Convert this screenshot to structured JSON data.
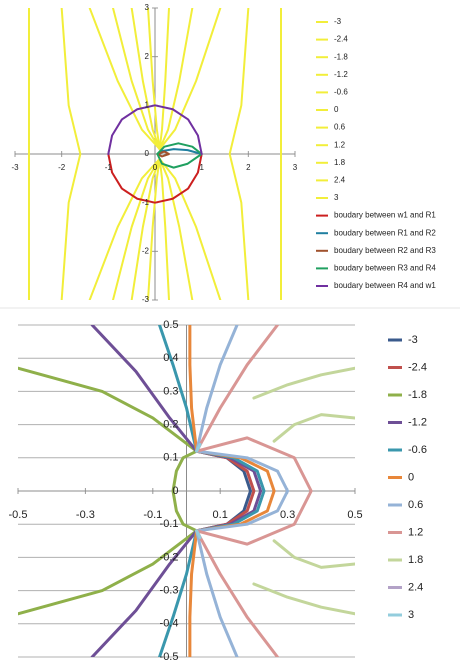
{
  "chart_data": [
    {
      "type": "line",
      "legend": "right",
      "grid": false,
      "xlim": [
        -3,
        3
      ],
      "ylim": [
        -3,
        3
      ],
      "xticks": [
        -3,
        -2,
        -1,
        0,
        1,
        2,
        3
      ],
      "yticks": [
        -3,
        -2,
        -1,
        0,
        1,
        2,
        3
      ],
      "series": [
        {
          "name": "-3",
          "color": "#f2ee3a",
          "x": [
            -2.7,
            -2.7
          ],
          "values": [
            3,
            -3
          ]
        },
        {
          "name": "-2.4",
          "color": "#f2ee3a",
          "x": [
            -2.0,
            -1.85,
            -1.6,
            -1.85,
            -2.0
          ],
          "values": [
            3,
            1,
            0,
            -1,
            -3
          ]
        },
        {
          "name": "-1.8",
          "color": "#f2ee3a",
          "x": [
            0.1,
            -0.28,
            -0.8,
            -1.4,
            null,
            0.1,
            -0.28,
            -0.8,
            -1.4
          ],
          "values": [
            0.1,
            0.5,
            1.5,
            3,
            null,
            -0.1,
            -0.5,
            -1.5,
            -3
          ]
        },
        {
          "name": "-1.2",
          "color": "#f2ee3a",
          "x": [
            0.1,
            -0.15,
            -0.5,
            -0.9,
            null,
            0.1,
            -0.15,
            -0.5,
            -0.9
          ],
          "values": [
            0.1,
            0.5,
            1.5,
            3,
            null,
            -0.1,
            -0.5,
            -1.5,
            -3
          ]
        },
        {
          "name": "-0.6",
          "color": "#f2ee3a",
          "x": [
            0.1,
            -0.05,
            -0.26,
            -0.5,
            null,
            0.1,
            -0.05,
            -0.26,
            -0.5
          ],
          "values": [
            0.1,
            0.5,
            1.5,
            3,
            null,
            -0.1,
            -0.5,
            -1.5,
            -3
          ]
        },
        {
          "name": "0",
          "color": "#f2ee3a",
          "x": [
            0.1,
            0.04,
            -0.05,
            -0.15,
            null,
            0.1,
            0.04,
            -0.05,
            -0.15
          ],
          "values": [
            0.1,
            0.5,
            1.5,
            3,
            null,
            -0.1,
            -0.5,
            -1.5,
            -3
          ]
        },
        {
          "name": "0.6",
          "color": "#f2ee3a",
          "x": [
            0.1,
            0.15,
            0.22,
            0.3,
            null,
            0.1,
            0.15,
            0.22,
            0.3
          ],
          "values": [
            0.1,
            0.5,
            1.5,
            3,
            null,
            -0.1,
            -0.5,
            -1.5,
            -3
          ]
        },
        {
          "name": "1.2",
          "color": "#f2ee3a",
          "x": [
            0.1,
            0.28,
            0.52,
            0.8,
            null,
            0.1,
            0.28,
            0.52,
            0.8
          ],
          "values": [
            0.1,
            0.5,
            1.5,
            3,
            null,
            -0.1,
            -0.5,
            -1.5,
            -3
          ]
        },
        {
          "name": "1.8",
          "color": "#f2ee3a",
          "x": [
            0.1,
            0.43,
            0.88,
            1.4,
            null,
            0.1,
            0.43,
            0.88,
            1.4
          ],
          "values": [
            0.1,
            0.5,
            1.5,
            3,
            null,
            -0.1,
            -0.5,
            -1.5,
            -3
          ]
        },
        {
          "name": "2.4",
          "color": "#f2ee3a",
          "x": [
            2.0,
            1.85,
            1.6,
            1.85,
            2.0
          ],
          "values": [
            3,
            1,
            0,
            -1,
            -3
          ]
        },
        {
          "name": "3",
          "color": "#f2ee3a",
          "x": [
            2.7,
            2.7
          ],
          "values": [
            3,
            -3
          ]
        },
        {
          "name": "boudary between w1 and R1",
          "color": "#cc1f1f",
          "x": [
            -1,
            -0.92,
            -0.71,
            -0.38,
            0,
            0.38,
            0.71,
            0.92,
            1
          ],
          "values": [
            0,
            -0.38,
            -0.71,
            -0.92,
            -1,
            -0.92,
            -0.71,
            -0.38,
            0
          ]
        },
        {
          "name": "boudary between R1 and R2",
          "color": "#1f7fa0",
          "x": [
            1,
            0.7,
            0.4,
            0.15,
            0.05
          ],
          "values": [
            0,
            0.08,
            0.1,
            0.06,
            0
          ]
        },
        {
          "name": "boudary between R2 and R3",
          "color": "#a0522d",
          "x": [
            0.05,
            0.15,
            0.3,
            0.2,
            0.05
          ],
          "values": [
            0,
            -0.05,
            0,
            0.05,
            0
          ]
        },
        {
          "name": "boudary between R3 and R4",
          "color": "#20a060",
          "x": [
            0.05,
            0.2,
            0.5,
            0.8,
            1,
            0.7,
            0.4,
            0.15,
            0.05
          ],
          "values": [
            0,
            0.15,
            0.22,
            0.15,
            0,
            -0.2,
            -0.28,
            -0.2,
            0
          ]
        },
        {
          "name": "boudary between R4 and w1",
          "color": "#7030a0",
          "x": [
            1,
            0.92,
            0.71,
            0.38,
            0,
            -0.38,
            -0.71,
            -0.92,
            -1
          ],
          "values": [
            0,
            0.38,
            0.71,
            0.92,
            1,
            0.92,
            0.71,
            0.38,
            0
          ]
        }
      ]
    },
    {
      "type": "line",
      "legend": "right",
      "grid": true,
      "xlim": [
        -0.5,
        0.5
      ],
      "ylim": [
        -0.5,
        0.5
      ],
      "xticks": [
        -0.5,
        -0.3,
        -0.1,
        0.1,
        0.3,
        0.5
      ],
      "yticks": [
        -0.5,
        -0.4,
        -0.3,
        -0.2,
        -0.1,
        0,
        0.1,
        0.2,
        0.3,
        0.4,
        0.5
      ],
      "series": [
        {
          "name": "-3",
          "color": "#3a5a8c",
          "x": [
            0.03,
            0.12,
            0.17,
            0.19,
            0.17,
            0.12,
            0.03
          ],
          "values": [
            0.12,
            0.1,
            0.06,
            0,
            -0.06,
            -0.1,
            -0.12
          ]
        },
        {
          "name": "-2.4",
          "color": "#c0504d",
          "x": [
            0.03,
            0.12,
            0.18,
            0.2,
            0.18,
            0.12,
            0.03
          ],
          "values": [
            0.12,
            0.1,
            0.06,
            0,
            -0.06,
            -0.1,
            -0.12
          ]
        },
        {
          "name": "-1.8",
          "color": "#8fb04a",
          "x": [
            0.03,
            -0.1,
            -0.25,
            -0.5,
            null,
            0.03,
            -0.01,
            -0.03,
            -0.04,
            -0.03,
            -0.01,
            0.03,
            null,
            0.03,
            -0.1,
            -0.25,
            -0.5
          ],
          "values": [
            0.12,
            0.22,
            0.3,
            0.37,
            null,
            0.12,
            0.1,
            0.06,
            0,
            -0.06,
            -0.1,
            -0.12,
            null,
            -0.12,
            -0.22,
            -0.3,
            -0.37
          ]
        },
        {
          "name": "-1.2",
          "color": "#6e4f96",
          "x": [
            0.03,
            -0.05,
            -0.15,
            -0.28,
            null,
            0.03,
            0.13,
            0.2,
            0.22,
            0.2,
            0.13,
            0.03,
            null,
            0.03,
            -0.05,
            -0.15,
            -0.28
          ],
          "values": [
            0.12,
            0.22,
            0.36,
            0.5,
            null,
            0.12,
            0.1,
            0.06,
            0,
            -0.06,
            -0.1,
            -0.12,
            null,
            -0.12,
            -0.22,
            -0.36,
            -0.5
          ]
        },
        {
          "name": "-0.6",
          "color": "#3a97ad",
          "x": [
            0.03,
            0.0,
            -0.04,
            -0.08,
            null,
            0.03,
            0.14,
            0.21,
            0.23,
            0.21,
            0.14,
            0.03,
            null,
            0.03,
            0.0,
            -0.04,
            -0.08
          ],
          "values": [
            0.12,
            0.25,
            0.38,
            0.5,
            null,
            0.12,
            0.1,
            0.06,
            0,
            -0.06,
            -0.1,
            -0.12,
            null,
            -0.12,
            -0.25,
            -0.38,
            -0.5
          ]
        },
        {
          "name": "0",
          "color": "#e8873a",
          "x": [
            0.03,
            0.015,
            0.01,
            0.01,
            null,
            0.03,
            0.16,
            0.24,
            0.26,
            0.24,
            0.16,
            0.03,
            null,
            0.03,
            0.015,
            0.01,
            0.01
          ],
          "values": [
            0.12,
            0.25,
            0.38,
            0.5,
            null,
            0.12,
            0.1,
            0.06,
            0,
            -0.06,
            -0.1,
            -0.12,
            null,
            -0.12,
            -0.25,
            -0.38,
            -0.5
          ]
        },
        {
          "name": "0.6",
          "color": "#95b3d7",
          "x": [
            0.03,
            0.06,
            0.1,
            0.15,
            null,
            0.03,
            0.18,
            0.27,
            0.3,
            0.27,
            0.18,
            0.03,
            null,
            0.03,
            0.06,
            0.1,
            0.15
          ],
          "values": [
            0.12,
            0.25,
            0.38,
            0.5,
            null,
            0.12,
            0.1,
            0.06,
            0,
            -0.06,
            -0.1,
            -0.12,
            null,
            -0.12,
            -0.25,
            -0.38,
            -0.5
          ]
        },
        {
          "name": "1.2",
          "color": "#d99694",
          "x": [
            0.03,
            0.1,
            0.18,
            0.27,
            null,
            0.03,
            0.18,
            0.32,
            0.37,
            0.32,
            0.18,
            0.03,
            null,
            0.03,
            0.1,
            0.18,
            0.27
          ],
          "values": [
            0.12,
            0.25,
            0.38,
            0.5,
            null,
            0.12,
            0.16,
            0.1,
            0,
            -0.1,
            -0.16,
            -0.12,
            null,
            -0.12,
            -0.25,
            -0.38,
            -0.5
          ]
        },
        {
          "name": "1.8",
          "color": "#c3d69b",
          "x": [
            0.2,
            0.3,
            0.4,
            0.5,
            null,
            0.5,
            0.4,
            0.32,
            0.26,
            null,
            0.26,
            0.32,
            0.4,
            0.5,
            null,
            0.5,
            0.4,
            0.3,
            0.2
          ],
          "values": [
            0.28,
            0.32,
            0.35,
            0.37,
            null,
            0.22,
            0.23,
            0.2,
            0.15,
            null,
            -0.15,
            -0.2,
            -0.23,
            -0.22,
            null,
            -0.37,
            -0.35,
            -0.32,
            -0.28
          ]
        },
        {
          "name": "2.4",
          "color": "#b3a2c7",
          "x": [
            0.03,
            0.04,
            null,
            0.03,
            0.04
          ],
          "values": [
            0.12,
            0.14,
            null,
            -0.12,
            -0.14
          ]
        },
        {
          "name": "3",
          "color": "#93cddd",
          "x": [
            0.03,
            0.04,
            null,
            0.03,
            0.04
          ],
          "values": [
            0.12,
            0.14,
            null,
            -0.12,
            -0.14
          ]
        }
      ]
    }
  ]
}
